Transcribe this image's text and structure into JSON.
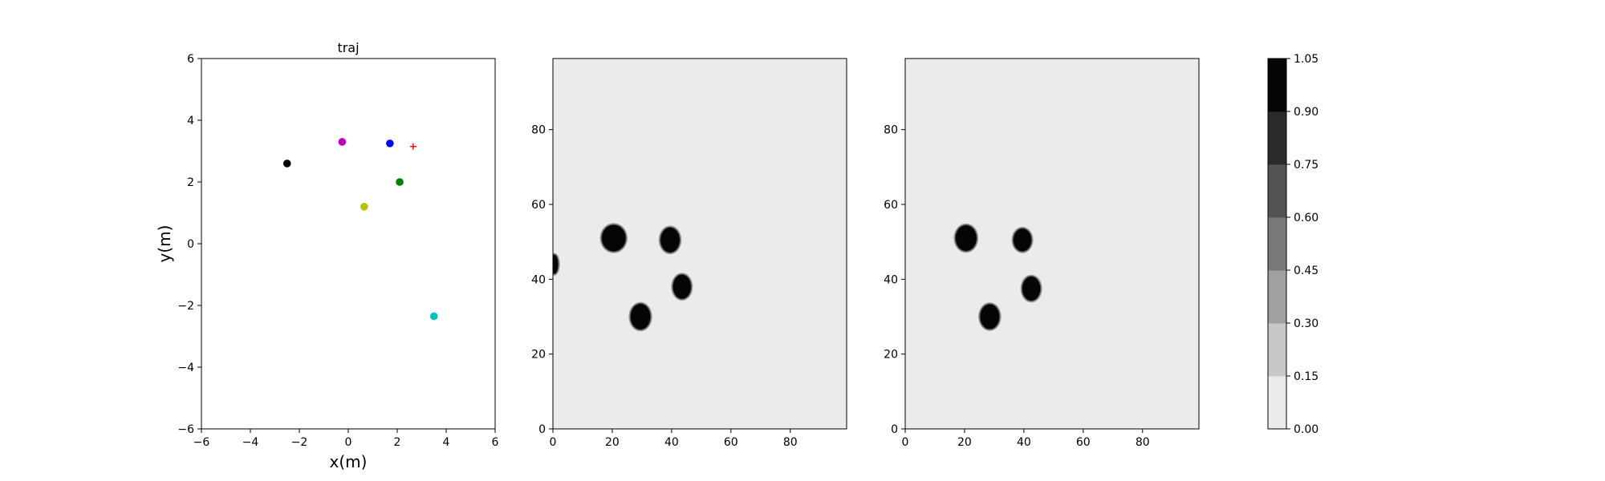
{
  "chart_data": [
    {
      "type": "scatter",
      "title": "traj",
      "xlabel": "x(m)",
      "ylabel": "y(m)",
      "xlim": [
        -6,
        6
      ],
      "ylim": [
        -6,
        6
      ],
      "xticks": [
        "−6",
        "−4",
        "−2",
        "0",
        "2",
        "4",
        "6"
      ],
      "yticks": [
        "−6",
        "−4",
        "−2",
        "0",
        "2",
        "4",
        "6"
      ],
      "grid": false,
      "points": [
        {
          "x": -2.5,
          "y": 2.6,
          "color": "#000000",
          "marker": "circle"
        },
        {
          "x": -0.25,
          "y": 3.3,
          "color": "#bf00bf",
          "marker": "circle"
        },
        {
          "x": 1.7,
          "y": 3.25,
          "color": "#0000ff",
          "marker": "circle"
        },
        {
          "x": 2.65,
          "y": 3.15,
          "color": "#ff0000",
          "marker": "plus"
        },
        {
          "x": 2.1,
          "y": 2.0,
          "color": "#008000",
          "marker": "circle"
        },
        {
          "x": 0.65,
          "y": 1.2,
          "color": "#bfbf00",
          "marker": "circle"
        },
        {
          "x": 3.5,
          "y": -2.35,
          "color": "#00bfbf",
          "marker": "circle"
        }
      ]
    },
    {
      "type": "heatmap",
      "xlim": [
        0,
        99
      ],
      "ylim": [
        0,
        99
      ],
      "xticks": [
        "0",
        "20",
        "40",
        "60",
        "80"
      ],
      "yticks": [
        "0",
        "20",
        "40",
        "60",
        "80"
      ],
      "background_value": 0.05,
      "blobs": [
        {
          "x": 20.5,
          "y": 51,
          "rx": 4,
          "ry": 3.5,
          "value": 1.0
        },
        {
          "x": 39.5,
          "y": 50.5,
          "rx": 3.2,
          "ry": 3.3,
          "value": 1.0
        },
        {
          "x": 43.5,
          "y": 38,
          "rx": 3,
          "ry": 3.2,
          "value": 1.0
        },
        {
          "x": 29.5,
          "y": 30,
          "rx": 3.3,
          "ry": 3.4,
          "value": 1.0
        },
        {
          "x": 0.5,
          "y": 44,
          "rx": 1.2,
          "ry": 2.5,
          "value": 1.0
        }
      ]
    },
    {
      "type": "heatmap",
      "xlim": [
        0,
        99
      ],
      "ylim": [
        0,
        99
      ],
      "xticks": [
        "0",
        "20",
        "40",
        "60",
        "80"
      ],
      "yticks": [
        "0",
        "20",
        "40",
        "60",
        "80"
      ],
      "background_value": 0.05,
      "blobs": [
        {
          "x": 20.5,
          "y": 51,
          "rx": 3.5,
          "ry": 3.4,
          "value": 1.0
        },
        {
          "x": 39.5,
          "y": 50.5,
          "rx": 3.0,
          "ry": 3.0,
          "value": 1.0
        },
        {
          "x": 42.5,
          "y": 37.5,
          "rx": 3.0,
          "ry": 3.2,
          "value": 1.0
        },
        {
          "x": 28.5,
          "y": 30,
          "rx": 3.2,
          "ry": 3.3,
          "value": 1.0
        }
      ]
    }
  ],
  "colorbar": {
    "levels": [
      0.0,
      0.15,
      0.3,
      0.45,
      0.6,
      0.75,
      0.9,
      1.05
    ],
    "tick_labels": [
      "0.00",
      "0.15",
      "0.30",
      "0.45",
      "0.60",
      "0.75",
      "0.90",
      "1.05"
    ],
    "colors": [
      "#ebebeb",
      "#c8c8c8",
      "#a0a0a0",
      "#7a7a7a",
      "#545454",
      "#2b2b2b",
      "#050505"
    ]
  }
}
